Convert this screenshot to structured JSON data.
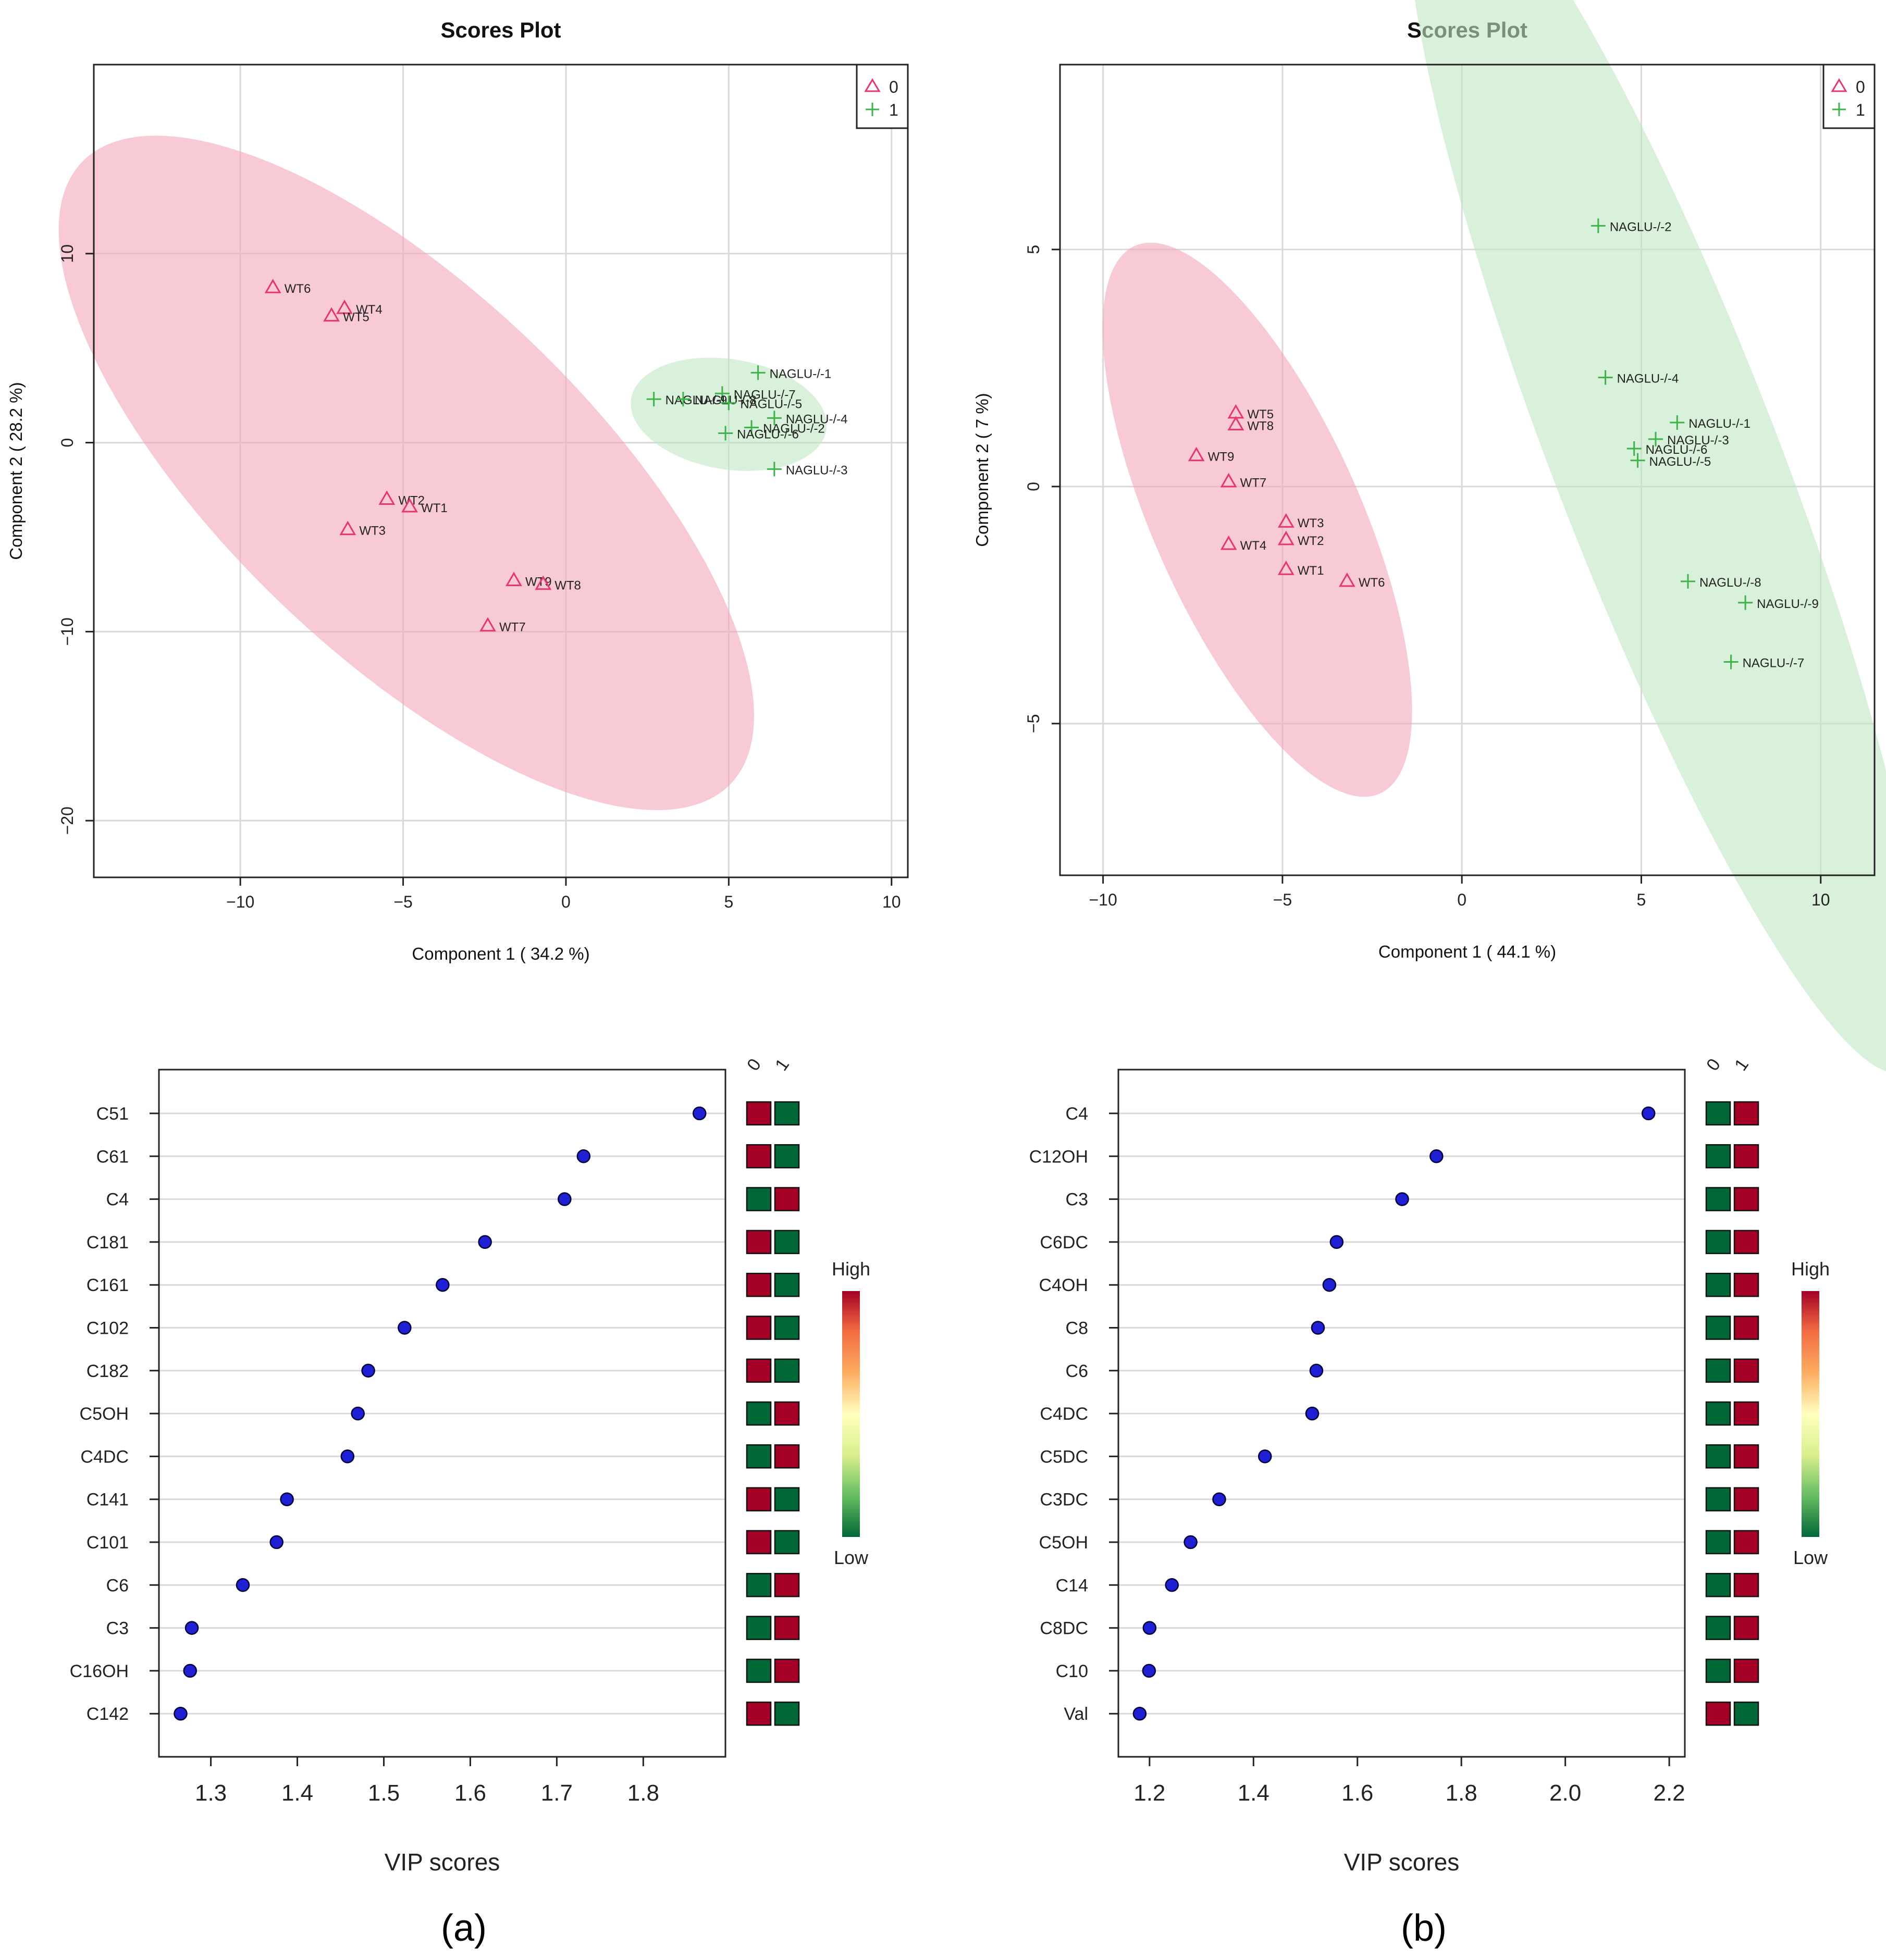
{
  "figure": {
    "panel_labels": [
      "(a)",
      "(b)"
    ]
  },
  "chart_data": [
    {
      "id": "a-scores",
      "type": "scatter",
      "title": "Scores Plot",
      "xlabel": "Component 1 ( 34.2 %)",
      "ylabel": "Component 2 ( 28.2 %)",
      "xlim": [
        -14.5,
        10.5
      ],
      "ylim": [
        -23,
        20
      ],
      "xticks": [
        -10,
        -5,
        0,
        5,
        10
      ],
      "yticks": [
        -20,
        -10,
        0,
        10
      ],
      "grid": true,
      "legend": {
        "position": "top-right",
        "entries": [
          {
            "marker": "triangle",
            "label": "0",
            "color": "#e8356c"
          },
          {
            "marker": "plus",
            "label": "1",
            "color": "#3cb44b"
          }
        ]
      },
      "ellipses": [
        {
          "group": "0",
          "color": "#f4a7bb",
          "cx": -4.9,
          "cy": -1.6,
          "rx": 19.23,
          "ry": 6.13,
          "angle": -58.8
        },
        {
          "group": "1",
          "color": "#bfe6c1",
          "cx": 5.0,
          "cy": 1.5,
          "rx": 3.11,
          "ry": 2.73,
          "angle": -15.5
        }
      ],
      "series": [
        {
          "name": "0",
          "marker": "triangle",
          "color": "#e8356c",
          "points": [
            {
              "label": "WT6",
              "x": -9.0,
              "y": 8.2
            },
            {
              "label": "WT4",
              "x": -6.8,
              "y": 7.1
            },
            {
              "label": "WT5",
              "x": -7.2,
              "y": 6.7
            },
            {
              "label": "WT2",
              "x": -5.5,
              "y": -3.0
            },
            {
              "label": "WT1",
              "x": -4.8,
              "y": -3.4
            },
            {
              "label": "WT3",
              "x": -6.7,
              "y": -4.6
            },
            {
              "label": "WT9",
              "x": -1.6,
              "y": -7.3
            },
            {
              "label": "WT8",
              "x": -0.7,
              "y": -7.5
            },
            {
              "label": "WT7",
              "x": -2.4,
              "y": -9.7
            }
          ]
        },
        {
          "name": "1",
          "marker": "plus",
          "color": "#3cb44b",
          "points": [
            {
              "label": "NAGLU-/-1",
              "x": 5.9,
              "y": 3.7
            },
            {
              "label": "NAGLU-/-7",
              "x": 4.8,
              "y": 2.6
            },
            {
              "label": "NAGLU-/-9",
              "x": 2.7,
              "y": 2.3
            },
            {
              "label": "NAGLU-/-8",
              "x": 3.6,
              "y": 2.3
            },
            {
              "label": "NAGLU-/-5",
              "x": 5.0,
              "y": 2.1
            },
            {
              "label": "NAGLU-/-4",
              "x": 6.4,
              "y": 1.3
            },
            {
              "label": "NAGLU-/-2",
              "x": 5.7,
              "y": 0.8
            },
            {
              "label": "NAGLU-/-6",
              "x": 4.9,
              "y": 0.5
            },
            {
              "label": "NAGLU-/-3",
              "x": 6.4,
              "y": -1.4
            }
          ]
        }
      ]
    },
    {
      "id": "b-scores",
      "type": "scatter",
      "title": "Scores Plot",
      "xlabel": "Component 1 ( 44.1 %)",
      "ylabel": "Component 2 ( 7 %)",
      "xlim": [
        -11.2,
        11.5
      ],
      "ylim": [
        -8.2,
        8.9
      ],
      "xticks": [
        -10,
        -5,
        0,
        5,
        10
      ],
      "yticks": [
        -5,
        0,
        5
      ],
      "grid": true,
      "legend": {
        "position": "top-right",
        "entries": [
          {
            "marker": "triangle",
            "label": "0",
            "color": "#e8356c"
          },
          {
            "marker": "plus",
            "label": "1",
            "color": "#3cb44b"
          }
        ]
      },
      "ellipses": [
        {
          "group": "0",
          "color": "#f4a7bb",
          "cx": -5.7,
          "cy": -0.7,
          "rx": 6.71,
          "ry": 2.64,
          "angle": -59.4
        },
        {
          "group": "1",
          "color": "#bfe6c1",
          "cx": 5.7,
          "cy": 0.55,
          "rx": 14.48,
          "ry": 2.91,
          "angle": -62.9
        }
      ],
      "series": [
        {
          "name": "0",
          "marker": "triangle",
          "color": "#e8356c",
          "points": [
            {
              "label": "WT5",
              "x": -6.3,
              "y": 1.55
            },
            {
              "label": "WT8",
              "x": -6.3,
              "y": 1.3
            },
            {
              "label": "WT9",
              "x": -7.4,
              "y": 0.65
            },
            {
              "label": "WT7",
              "x": -6.5,
              "y": 0.1
            },
            {
              "label": "WT3",
              "x": -4.9,
              "y": -0.75
            },
            {
              "label": "WT2",
              "x": -4.9,
              "y": -1.12
            },
            {
              "label": "WT4",
              "x": -6.5,
              "y": -1.22
            },
            {
              "label": "WT1",
              "x": -4.9,
              "y": -1.75
            },
            {
              "label": "WT6",
              "x": -3.2,
              "y": -2.0
            }
          ]
        },
        {
          "name": "1",
          "marker": "plus",
          "color": "#3cb44b",
          "points": [
            {
              "label": "NAGLU-/-2",
              "x": 3.8,
              "y": 5.5
            },
            {
              "label": "NAGLU-/-4",
              "x": 4.0,
              "y": 2.3
            },
            {
              "label": "NAGLU-/-1",
              "x": 6.0,
              "y": 1.35
            },
            {
              "label": "NAGLU-/-3",
              "x": 5.4,
              "y": 1.0
            },
            {
              "label": "NAGLU-/-6",
              "x": 4.8,
              "y": 0.8
            },
            {
              "label": "NAGLU-/-5",
              "x": 4.9,
              "y": 0.55
            },
            {
              "label": "NAGLU-/-8",
              "x": 6.3,
              "y": -2.0
            },
            {
              "label": "NAGLU-/-9",
              "x": 7.9,
              "y": -2.45
            },
            {
              "label": "NAGLU-/-7",
              "x": 7.5,
              "y": -3.7
            }
          ]
        }
      ]
    },
    {
      "id": "a-vip",
      "type": "scatter",
      "xlabel": "VIP scores",
      "xlim": [
        1.24,
        1.895
      ],
      "xticks": [
        1.3,
        1.4,
        1.5,
        1.6,
        1.7,
        1.8
      ],
      "xtick_labels": [
        "1.3",
        "1.4",
        "1.5",
        "1.6",
        "1.7",
        "1.8"
      ],
      "grid": true,
      "group_labels": [
        "0",
        "1"
      ],
      "colorbar": {
        "high": "High",
        "low": "Low",
        "stops": [
          "#006837",
          "#66bd63",
          "#d9ef8b",
          "#ffffbf",
          "#fdae61",
          "#f46d43",
          "#a50026"
        ]
      },
      "colors": {
        "high": "#a50026",
        "low": "#006837",
        "dot": "#1f1fd6"
      },
      "categories": [
        "C51",
        "C61",
        "C4",
        "C181",
        "C161",
        "C102",
        "C182",
        "C5OH",
        "C4DC",
        "C141",
        "C101",
        "C6",
        "C3",
        "C16OH",
        "C142"
      ],
      "values": [
        1.865,
        1.731,
        1.709,
        1.617,
        1.568,
        1.524,
        1.482,
        1.47,
        1.458,
        1.388,
        1.376,
        1.337,
        1.278,
        1.276,
        1.265
      ],
      "heat": [
        [
          "high",
          "low"
        ],
        [
          "high",
          "low"
        ],
        [
          "low",
          "high"
        ],
        [
          "high",
          "low"
        ],
        [
          "high",
          "low"
        ],
        [
          "high",
          "low"
        ],
        [
          "high",
          "low"
        ],
        [
          "low",
          "high"
        ],
        [
          "low",
          "high"
        ],
        [
          "high",
          "low"
        ],
        [
          "high",
          "low"
        ],
        [
          "low",
          "high"
        ],
        [
          "low",
          "high"
        ],
        [
          "low",
          "high"
        ],
        [
          "high",
          "low"
        ]
      ]
    },
    {
      "id": "b-vip",
      "type": "scatter",
      "xlabel": "VIP scores",
      "xlim": [
        1.14,
        2.23
      ],
      "xticks": [
        1.2,
        1.4,
        1.6,
        1.8,
        2.0,
        2.2
      ],
      "xtick_labels": [
        "1.2",
        "1.4",
        "1.6",
        "1.8",
        "2.0",
        "2.2"
      ],
      "grid": true,
      "group_labels": [
        "0",
        "1"
      ],
      "colorbar": {
        "high": "High",
        "low": "Low",
        "stops": [
          "#006837",
          "#66bd63",
          "#d9ef8b",
          "#ffffbf",
          "#fdae61",
          "#f46d43",
          "#a50026"
        ]
      },
      "colors": {
        "high": "#a50026",
        "low": "#006837",
        "dot": "#1f1fd6"
      },
      "categories": [
        "C4",
        "C12OH",
        "C3",
        "C6DC",
        "C4OH",
        "C8",
        "C6",
        "C4DC",
        "C5DC",
        "C3DC",
        "C5OH",
        "C14",
        "C8DC",
        "C10",
        "Val"
      ],
      "values": [
        2.16,
        1.752,
        1.686,
        1.56,
        1.546,
        1.524,
        1.521,
        1.513,
        1.422,
        1.334,
        1.279,
        1.243,
        1.2,
        1.199,
        1.181
      ],
      "heat": [
        [
          "low",
          "high"
        ],
        [
          "low",
          "high"
        ],
        [
          "low",
          "high"
        ],
        [
          "low",
          "high"
        ],
        [
          "low",
          "high"
        ],
        [
          "low",
          "high"
        ],
        [
          "low",
          "high"
        ],
        [
          "low",
          "high"
        ],
        [
          "low",
          "high"
        ],
        [
          "low",
          "high"
        ],
        [
          "low",
          "high"
        ],
        [
          "low",
          "high"
        ],
        [
          "low",
          "high"
        ],
        [
          "low",
          "high"
        ],
        [
          "high",
          "low"
        ]
      ]
    }
  ]
}
